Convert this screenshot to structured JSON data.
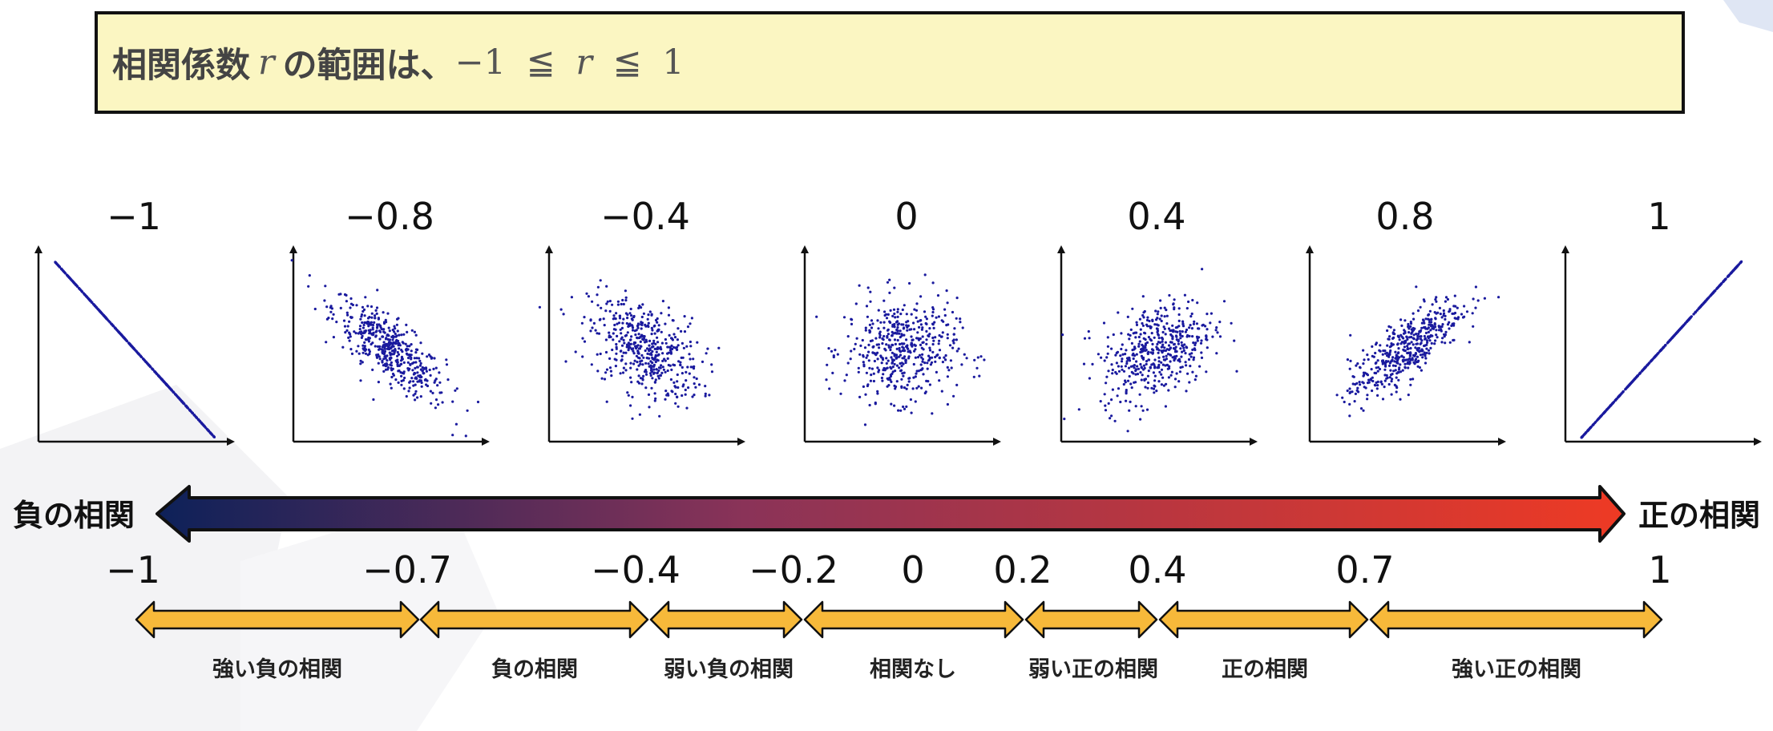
{
  "title": {
    "text_jp": "相関係数",
    "var": "r",
    "text_jp2": "の範囲は、",
    "range_min": "−1",
    "leq": "≦",
    "range_max": "1"
  },
  "scatter_labels": [
    "−1",
    "−0.8",
    "−0.4",
    "0",
    "0.4",
    "0.8",
    "1"
  ],
  "scale": {
    "left_label": "負の相関",
    "right_label": "正の相関",
    "gradient_start": "#0d2159",
    "gradient_mid": "#8a3358",
    "gradient_end": "#ee3a24",
    "ticks": [
      "−1",
      "−0.7",
      "−0.4",
      "−0.2",
      "0",
      "0.2",
      "0.4",
      "0.7",
      "1"
    ],
    "categories": [
      "強い負の相関",
      "負の相関",
      "弱い負の相関",
      "相関なし",
      "弱い正の相関",
      "正の相関",
      "強い正の相関"
    ],
    "category_arrow_color": "#f7b93a"
  },
  "chart_data": [
    {
      "type": "scatter",
      "title": "−1",
      "correlation": -1
    },
    {
      "type": "scatter",
      "title": "−0.8",
      "correlation": -0.8
    },
    {
      "type": "scatter",
      "title": "−0.4",
      "correlation": -0.4
    },
    {
      "type": "scatter",
      "title": "0",
      "correlation": 0
    },
    {
      "type": "scatter",
      "title": "0.4",
      "correlation": 0.4
    },
    {
      "type": "scatter",
      "title": "0.8",
      "correlation": 0.8
    },
    {
      "type": "scatter",
      "title": "1",
      "correlation": 1
    }
  ],
  "point_color": "#1a1a9e"
}
